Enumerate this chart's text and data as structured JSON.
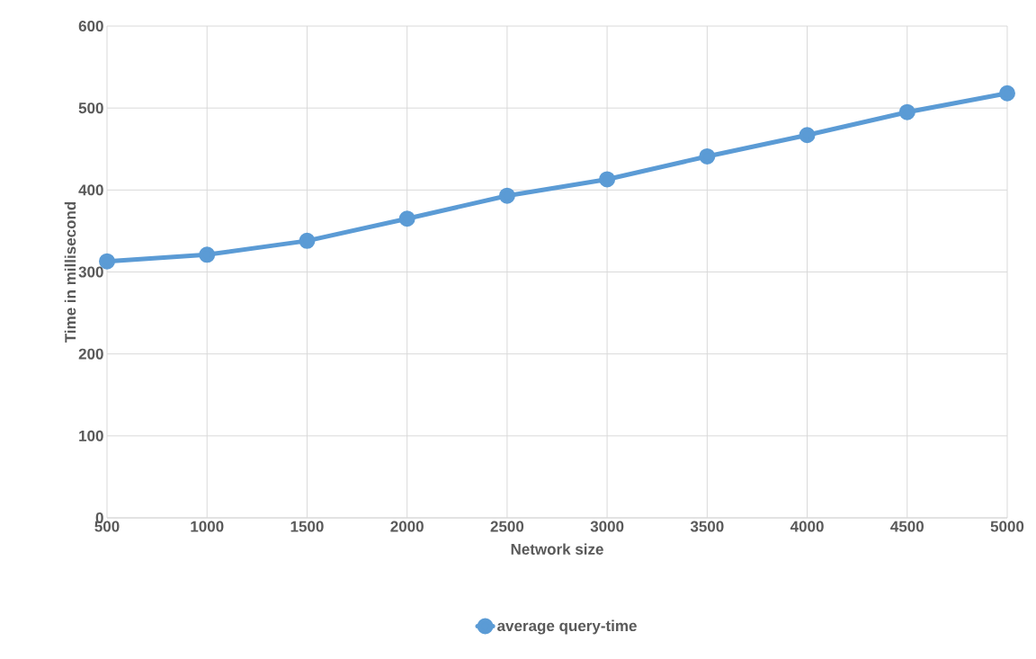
{
  "chart_data": {
    "type": "line",
    "xlabel": "Network size",
    "ylabel": "Time in millisecond",
    "x": [
      500,
      1000,
      1500,
      2000,
      2500,
      3000,
      3500,
      4000,
      4500,
      5000
    ],
    "series": [
      {
        "name": "average query-time",
        "color": "#5b9bd5",
        "values": [
          313,
          321,
          338,
          365,
          393,
          413,
          441,
          467,
          495,
          518
        ]
      }
    ],
    "xlim": [
      500,
      5000
    ],
    "xticks": [
      500,
      1000,
      1500,
      2000,
      2500,
      3000,
      3500,
      4000,
      4500,
      5000
    ],
    "ylim": [
      0,
      600
    ],
    "yticks": [
      0,
      100,
      200,
      300,
      400,
      500,
      600
    ],
    "grid": true,
    "legend": "bottom",
    "marker": "circle",
    "line_style": "solid"
  }
}
